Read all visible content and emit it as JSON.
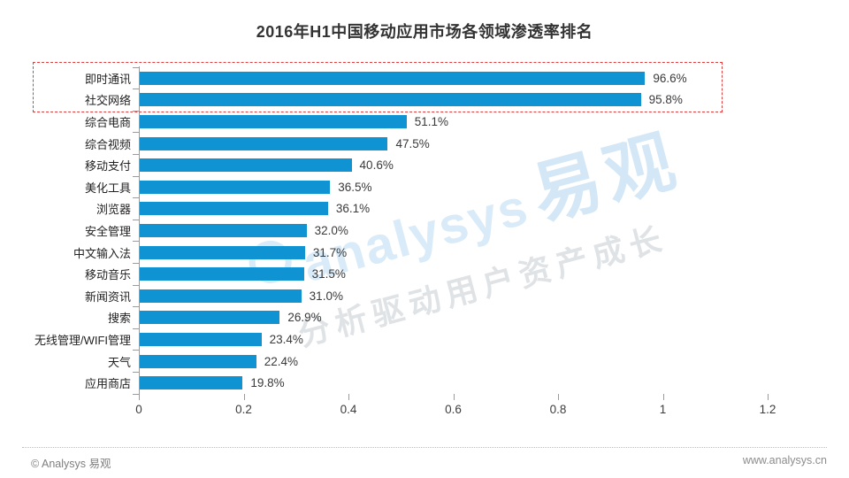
{
  "title": "2016年H1中国移动应用市场各领域渗透率排名",
  "chart_data": {
    "type": "bar",
    "orientation": "horizontal",
    "title": "2016年H1中国移动应用市场各领域渗透率排名",
    "categories": [
      "即时通讯",
      "社交网络",
      "综合电商",
      "综合视频",
      "移动支付",
      "美化工具",
      "浏览器",
      "安全管理",
      "中文输入法",
      "移动音乐",
      "新闻资讯",
      "搜索",
      "无线管理/WIFI管理",
      "天气",
      "应用商店"
    ],
    "values": [
      96.6,
      95.8,
      51.1,
      47.5,
      40.6,
      36.5,
      36.1,
      32.0,
      31.7,
      31.5,
      31.0,
      26.9,
      23.4,
      22.4,
      19.8
    ],
    "labels": [
      "96.6%",
      "95.8%",
      "51.1%",
      "47.5%",
      "40.6%",
      "36.5%",
      "36.1%",
      "32.0%",
      "31.7%",
      "31.5%",
      "31.0%",
      "26.9%",
      "23.4%",
      "22.4%",
      "19.8%"
    ],
    "xlabel": "",
    "ylabel": "",
    "xlim": [
      0,
      1.2
    ],
    "x_ticks": [
      "0",
      "0.2",
      "0.4",
      "0.6",
      "0.8",
      "1",
      "1.2"
    ],
    "grid": false,
    "legend": false,
    "bar_color": "#0f93d3",
    "annotation": {
      "type": "highlight-box",
      "style": "red-dashed",
      "color": "#e23d3d",
      "rows": [
        "即时通讯",
        "社交网络"
      ]
    }
  },
  "watermark": {
    "brand_en": "analysys",
    "brand_cn": "易观",
    "tagline": "分析驱动用户资产成长",
    "color": "#d9ebf8"
  },
  "footer": {
    "copyright": "© Analysys 易观",
    "website": "www.analysys.cn"
  }
}
